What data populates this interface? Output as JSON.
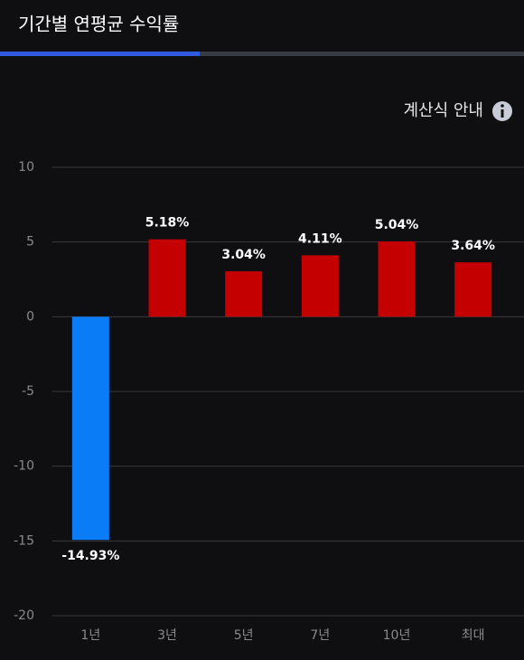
{
  "info_link": "계산식 안내",
  "chart_data": {
    "type": "bar",
    "title": "기간별 연평균 수익률",
    "categories": [
      "1년",
      "3년",
      "5년",
      "7년",
      "10년",
      "최대"
    ],
    "values": [
      -14.93,
      5.18,
      3.04,
      4.11,
      5.04,
      3.64
    ],
    "value_labels": [
      "-14.93%",
      "5.18%",
      "3.04%",
      "4.11%",
      "5.04%",
      "3.64%"
    ],
    "colors": [
      "#0a7cf5",
      "#c40000",
      "#c40000",
      "#c40000",
      "#c40000",
      "#c40000"
    ],
    "ylim": [
      -20,
      10
    ],
    "yticks": [
      -20,
      -15,
      -10,
      -5,
      0,
      5,
      10
    ],
    "grid": true
  }
}
